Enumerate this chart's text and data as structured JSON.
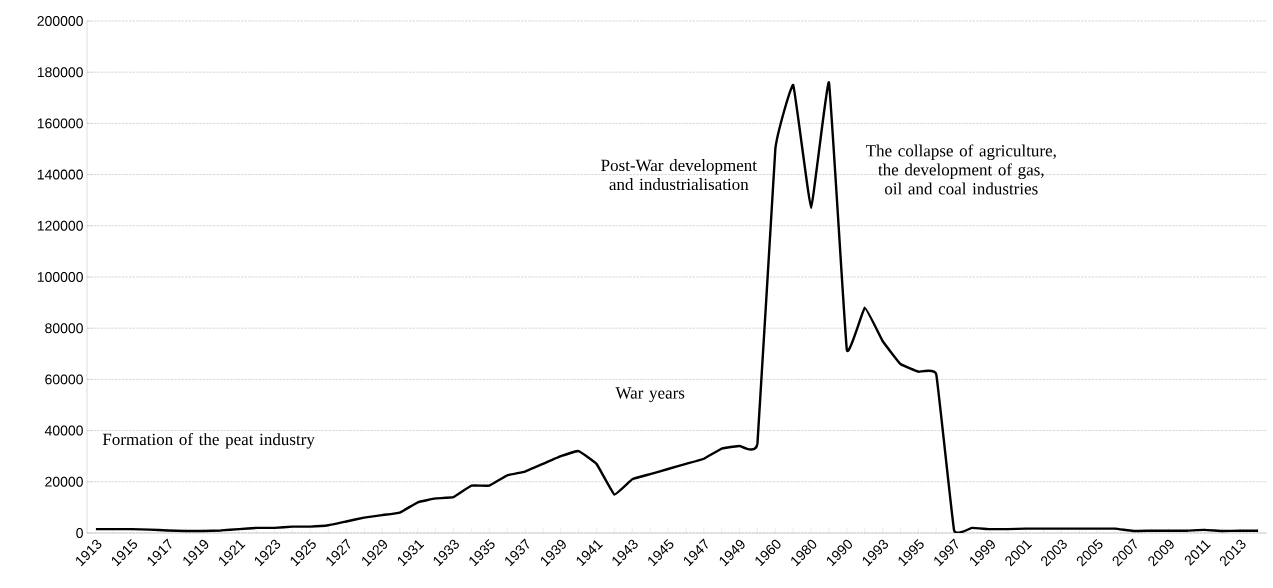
{
  "chart_data": {
    "type": "line",
    "categories": [
      "1913",
      null,
      "1915",
      null,
      "1917",
      null,
      "1919",
      null,
      "1921",
      null,
      "1923",
      null,
      "1925",
      null,
      "1927",
      null,
      "1929",
      null,
      "1931",
      null,
      "1933",
      null,
      "1935",
      null,
      "1937",
      null,
      "1939",
      null,
      "1941",
      null,
      "1943",
      null,
      "1945",
      null,
      "1947",
      null,
      "1949",
      null,
      "1960",
      null,
      "1980",
      null,
      "1990",
      null,
      "1993",
      null,
      "1995",
      null,
      "1997",
      null,
      "1999",
      null,
      "2001",
      null,
      "2003",
      null,
      "2005",
      null,
      "2007",
      null,
      "2009",
      null,
      "2011",
      null,
      "2013",
      null
    ],
    "series": [
      {
        "color": "#000000",
        "values": [
          1500,
          1500,
          1500,
          1300,
          1000,
          800,
          800,
          1000,
          1500,
          2000,
          2000,
          2500,
          2500,
          3000,
          4500,
          6000,
          7000,
          8000,
          12000,
          13500,
          14000,
          18500,
          18500,
          22500,
          24000,
          27000,
          30000,
          32000,
          27000,
          15000,
          21000,
          23000,
          25000,
          27000,
          29000,
          33000,
          34000,
          35000,
          150000,
          175000,
          127000,
          176000,
          71500,
          88000,
          75000,
          66000,
          63000,
          62000,
          1000,
          2000,
          1500,
          1500,
          1700,
          1700,
          1700,
          1700,
          1700,
          1700,
          800,
          900,
          900,
          900,
          1200,
          800,
          900,
          900
        ]
      }
    ],
    "ylim": [
      0,
      200000
    ],
    "yticks": [
      0,
      20000,
      40000,
      60000,
      80000,
      100000,
      120000,
      140000,
      160000,
      180000,
      200000
    ],
    "grid": "y",
    "marker": "none",
    "line_style": "solid",
    "annotations": [
      "Formation of the peat industry",
      "War years",
      "Post-War development and industrialisation",
      "The collapse of agriculture, the development of gas, oil and coal industries"
    ]
  }
}
